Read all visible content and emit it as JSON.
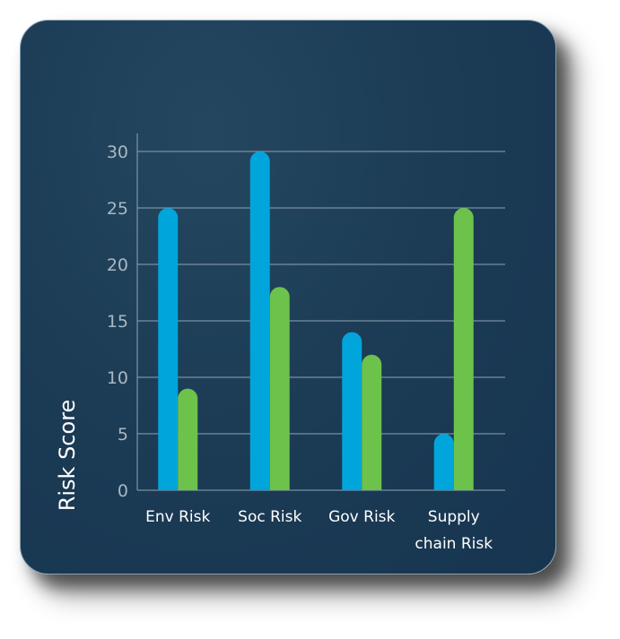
{
  "chart_data": {
    "type": "bar",
    "ylabel": "Risk Score",
    "categories": [
      [
        "Env Risk"
      ],
      [
        "Soc Risk"
      ],
      [
        "Gov Risk"
      ],
      [
        "Supply",
        "chain Risk"
      ]
    ],
    "yticks": [
      0,
      5,
      10,
      15,
      20,
      25,
      30
    ],
    "ylim": [
      0,
      30
    ],
    "grid": true,
    "series": [
      {
        "values": [
          25,
          30,
          14,
          5
        ],
        "color": "#00a5dc"
      },
      {
        "values": [
          9,
          18,
          12,
          25
        ],
        "color": "#6cc24a"
      }
    ]
  },
  "colors": {
    "background": "#1b3a54",
    "gridline": "#8fa3b3",
    "axis_text": "#a9b8c3"
  }
}
